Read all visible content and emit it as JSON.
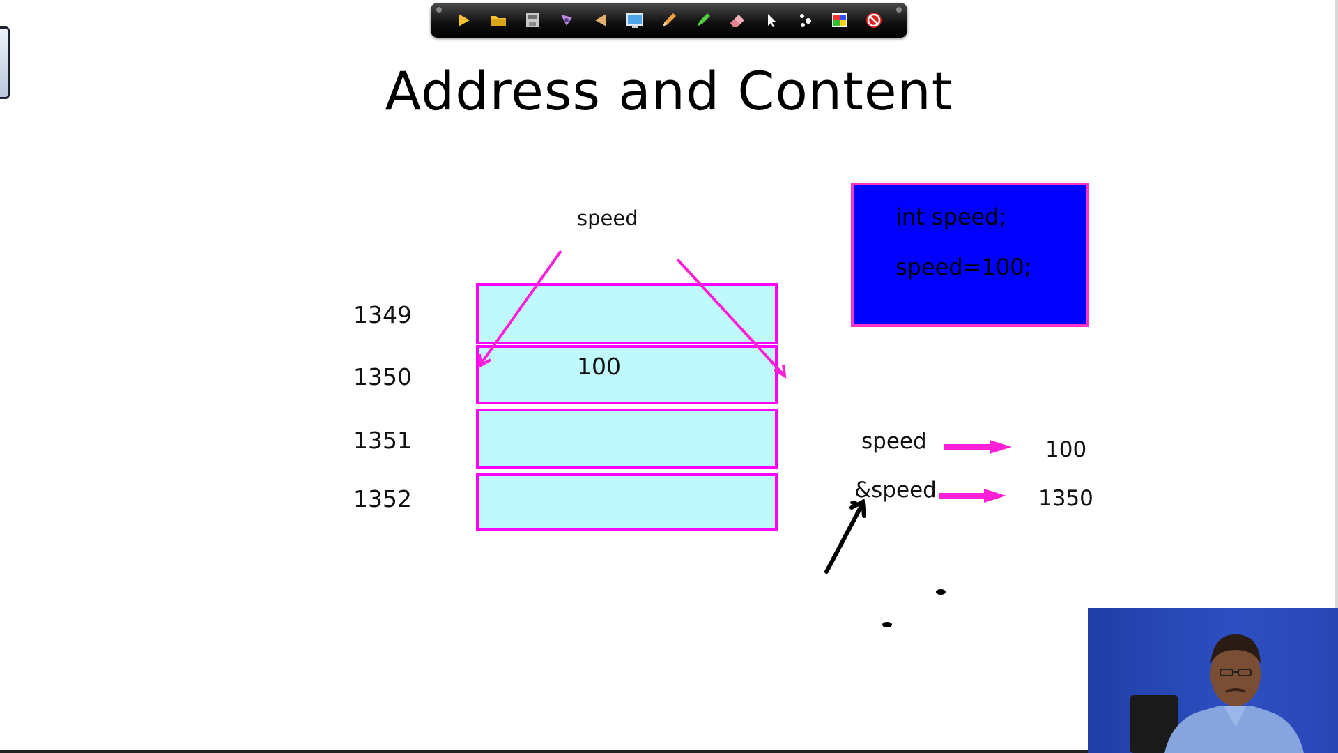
{
  "slide": {
    "title": "Address and Content"
  },
  "toolbar": {
    "tools": [
      {
        "name": "next-slide-icon",
        "color": "#f2c230"
      },
      {
        "name": "folder-icon",
        "color": "#f2c230"
      },
      {
        "name": "save-icon",
        "color": "#c9c9c9"
      },
      {
        "name": "pen-icon",
        "color": "#b88ad8"
      },
      {
        "name": "back-icon",
        "color": "#e4b070"
      },
      {
        "name": "screen-icon",
        "color": "#4ea6e8"
      },
      {
        "name": "pencil-icon",
        "color": "#e8a040"
      },
      {
        "name": "highlighter-icon",
        "color": "#55cc44"
      },
      {
        "name": "eraser-icon",
        "color": "#f0b0b8"
      },
      {
        "name": "pointer-icon",
        "color": "#ffffff"
      },
      {
        "name": "laser-dots-icon",
        "color": "#ffffff"
      },
      {
        "name": "color-palette-icon",
        "color": "#ff3030"
      },
      {
        "name": "stop-icon",
        "color": "#e02020"
      }
    ]
  },
  "diagram": {
    "variable_name": "speed",
    "cells": [
      {
        "address": "1349",
        "value": ""
      },
      {
        "address": "1350",
        "value": "100"
      },
      {
        "address": "1351",
        "value": ""
      },
      {
        "address": "1352",
        "value": ""
      }
    ],
    "cell_color": "#bff9fb",
    "border_color": "#ff00ff"
  },
  "code": {
    "lines": [
      "int speed;",
      "speed=100;"
    ],
    "box_color": "#0000ff"
  },
  "relations": [
    {
      "expr": "speed",
      "result": "100"
    },
    {
      "expr": "&speed",
      "result": "1350"
    }
  ]
}
